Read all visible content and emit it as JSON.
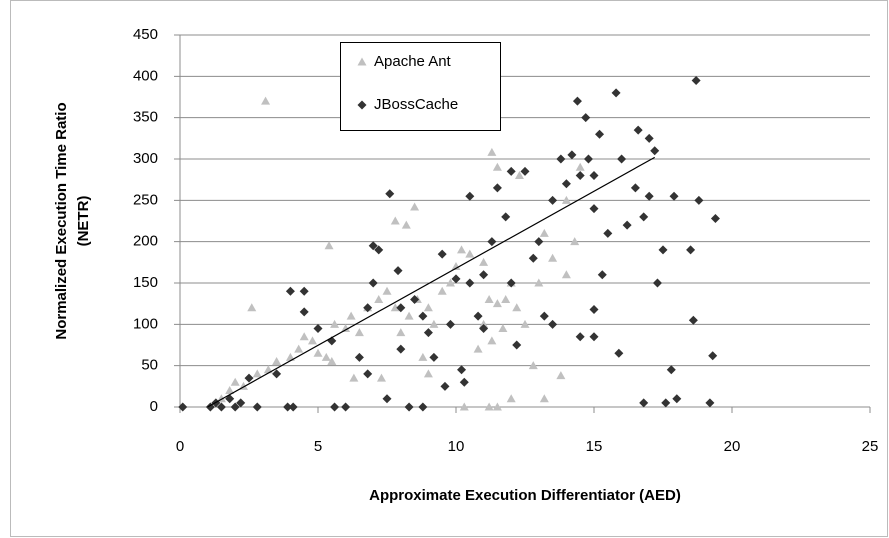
{
  "chart_data": {
    "type": "scatter",
    "x_label": "Approximate Execution  Differentiator (AED)",
    "y_label": [
      "Normalized Execution Time Ratio",
      "(NETR)"
    ],
    "xlim": [
      0,
      25
    ],
    "xticks": [
      0,
      5,
      10,
      15,
      20,
      25
    ],
    "ylim": [
      0,
      450
    ],
    "yticks": [
      0,
      50,
      100,
      150,
      200,
      250,
      300,
      350,
      400,
      450
    ],
    "grid": true,
    "legend": "top",
    "series": [
      {
        "name": "Apache Ant",
        "color": "#c0c0c0",
        "marker": "triangle",
        "x": [
          3.1,
          2.6,
          5.4,
          7.8,
          8.2,
          8.5,
          11.3,
          11.5,
          12.3,
          10.2,
          10.5,
          11,
          13.2,
          13.5,
          12,
          11.2,
          11.5,
          11.8,
          11,
          11.3,
          12.8,
          13.2,
          13.8,
          10.3,
          11.2,
          11.5,
          12,
          1.5,
          1.8,
          2,
          2.3,
          2.8,
          3.2,
          3.5,
          4,
          4.3,
          4.5,
          4.8,
          5,
          5.3,
          5.6,
          6,
          6.2,
          6.5,
          6.8,
          7.2,
          7.5,
          7.8,
          8.3,
          8.6,
          9,
          9.2,
          9.5,
          9.8,
          10,
          9,
          8.8,
          8,
          7.3,
          6.3,
          5.5,
          14,
          14.3,
          14.5,
          10.8,
          11.7,
          12.2,
          12.5,
          13,
          14
        ],
        "values": [
          370,
          120,
          195,
          225,
          220,
          242,
          308,
          290,
          280,
          190,
          185,
          175,
          210,
          180,
          150,
          130,
          125,
          130,
          100,
          80,
          50,
          10,
          38,
          0,
          0,
          0,
          10,
          10,
          20,
          30,
          25,
          40,
          45,
          55,
          60,
          70,
          85,
          80,
          65,
          60,
          100,
          95,
          110,
          90,
          120,
          130,
          140,
          120,
          110,
          130,
          120,
          100,
          140,
          150,
          170,
          40,
          60,
          90,
          35,
          35,
          55,
          160,
          200,
          290,
          70,
          95,
          120,
          100,
          150,
          250
        ]
      },
      {
        "name": "JBossCache",
        "color": "#333333",
        "marker": "diamond",
        "x": [
          0.1,
          1.1,
          1.3,
          1.5,
          1.8,
          2,
          2.2,
          2.5,
          2.8,
          3.5,
          3.9,
          4.1,
          4,
          4.5,
          4.5,
          5,
          5.5,
          5.6,
          6,
          6.5,
          6.8,
          7,
          7.2,
          7.5,
          7.6,
          7.9,
          8,
          8.3,
          8.5,
          8.8,
          9,
          9.2,
          9.5,
          9.6,
          10,
          10.2,
          10.5,
          10.3,
          11,
          11.3,
          11.5,
          11.8,
          12,
          12.2,
          12.5,
          12.8,
          13,
          13.2,
          13.5,
          13.8,
          14,
          14.2,
          14.4,
          14.5,
          14.7,
          15,
          15,
          15.2,
          15.3,
          15.5,
          15.8,
          15.9,
          16,
          16.2,
          16.5,
          16.6,
          16.8,
          17,
          17.2,
          17.3,
          17.5,
          17.6,
          17.8,
          17.9,
          18.5,
          18.6,
          18.7,
          18.8,
          19.2,
          19.3,
          19.4,
          14.5,
          15,
          15,
          12,
          11,
          10.8,
          13.5,
          14.8,
          16.8,
          6.8,
          7,
          8,
          8.8,
          9.8,
          10.5,
          17,
          18
        ],
        "values": [
          0,
          0,
          5,
          0,
          10,
          0,
          5,
          35,
          0,
          40,
          0,
          0,
          140,
          140,
          115,
          95,
          80,
          0,
          0,
          60,
          40,
          195,
          190,
          10,
          258,
          165,
          70,
          0,
          130,
          0,
          90,
          60,
          185,
          25,
          155,
          45,
          255,
          30,
          160,
          200,
          265,
          230,
          285,
          75,
          285,
          180,
          200,
          110,
          100,
          300,
          270,
          305,
          370,
          280,
          350,
          280,
          240,
          330,
          160,
          210,
          380,
          65,
          300,
          220,
          265,
          335,
          5,
          325,
          310,
          150,
          190,
          5,
          45,
          255,
          190,
          105,
          395,
          250,
          5,
          62,
          228,
          85,
          85,
          118,
          150,
          95,
          110,
          250,
          300,
          230,
          120,
          150,
          120,
          110,
          100,
          150,
          255,
          10
        ]
      }
    ],
    "trendline": {
      "x": [
        1,
        17.2
      ],
      "y": [
        0,
        302
      ]
    }
  }
}
